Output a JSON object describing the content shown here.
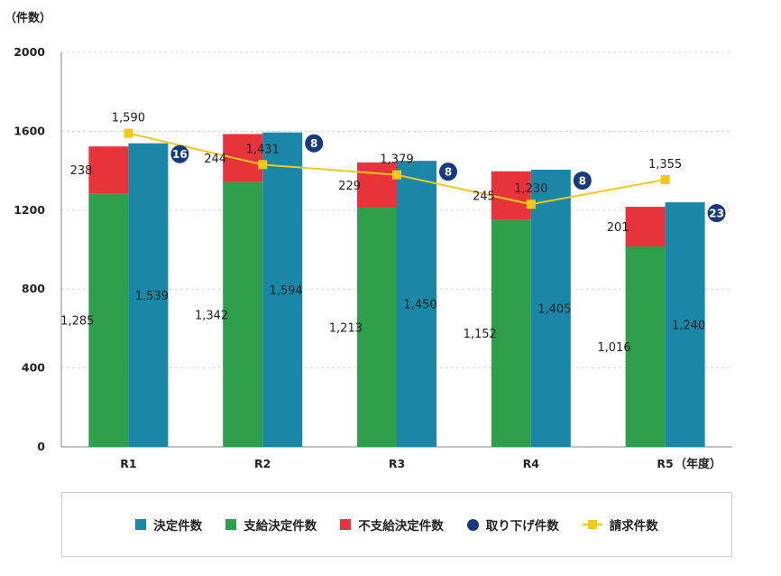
{
  "chart_data": {
    "type": "bar",
    "y_unit_label": "（件数）",
    "x_unit_label": "（年度）",
    "categories": [
      "R1",
      "R2",
      "R3",
      "R4",
      "R5"
    ],
    "ylim": [
      0,
      2000
    ],
    "yticks": [
      0,
      400,
      800,
      1200,
      1600,
      2000
    ],
    "grid": true,
    "legend_position": "bottom",
    "series": [
      {
        "name": "決定件数",
        "type": "bar",
        "color": "#1b87a8",
        "values": [
          1539,
          1594,
          1450,
          1405,
          1240
        ],
        "labels": [
          "1,539",
          "1,594",
          "1,450",
          "1,405",
          "1,240"
        ]
      },
      {
        "name": "支給決定件数",
        "type": "bar-stacked",
        "color": "#2e9f4a",
        "values": [
          1285,
          1342,
          1213,
          1152,
          1016
        ],
        "labels": [
          "1,285",
          "1,342",
          "1,213",
          "1,152",
          "1,016"
        ]
      },
      {
        "name": "不支給決定件数",
        "type": "bar-stacked",
        "color": "#e8333a",
        "values": [
          238,
          244,
          229,
          245,
          201
        ],
        "labels": [
          "238",
          "244",
          "229",
          "245",
          "201"
        ]
      },
      {
        "name": "取り下げ件数",
        "type": "badge",
        "color": "#173a7e",
        "values": [
          16,
          8,
          8,
          8,
          23
        ],
        "labels": [
          "16",
          "8",
          "8",
          "8",
          "23"
        ]
      },
      {
        "name": "請求件数",
        "type": "line",
        "color": "#f2c81a",
        "values": [
          1590,
          1431,
          1379,
          1230,
          1355
        ],
        "labels": [
          "1,590",
          "1,431",
          "1,379",
          "1,230",
          "1,355"
        ]
      }
    ]
  }
}
